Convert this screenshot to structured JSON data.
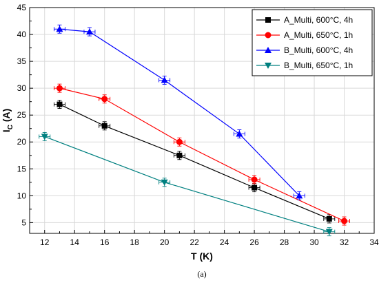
{
  "chart_data": {
    "type": "line",
    "xlabel": "T (K)",
    "ylabel_main": "I",
    "ylabel_sub": "C",
    "ylabel_unit": "(A)",
    "xlim": [
      11,
      34
    ],
    "ylim": [
      3,
      45
    ],
    "xticks": [
      12,
      14,
      16,
      18,
      20,
      22,
      24,
      26,
      28,
      30,
      32,
      34
    ],
    "yticks": [
      5,
      10,
      15,
      20,
      25,
      30,
      35,
      40,
      45
    ],
    "grid": true,
    "legend_position": "top-right",
    "series": [
      {
        "name": "A_Multi, 600°C, 4h",
        "color": "#000000",
        "marker": "square",
        "x": [
          13,
          16,
          21,
          26,
          31
        ],
        "y": [
          27,
          23,
          17.5,
          11.5,
          5.7
        ]
      },
      {
        "name": "A_Multi, 650°C, 1h",
        "color": "#ff0000",
        "marker": "circle",
        "x": [
          13,
          16,
          21,
          26,
          32
        ],
        "y": [
          30,
          28,
          20,
          13,
          5.3
        ]
      },
      {
        "name": "B_Multi, 600°C, 4h",
        "color": "#0000ff",
        "marker": "triangle-up",
        "x": [
          13,
          15,
          20,
          25,
          29
        ],
        "y": [
          41,
          40.5,
          31.5,
          21.5,
          10
        ]
      },
      {
        "name": "B_Multi, 650°C, 1h",
        "color": "#008080",
        "marker": "triangle-down",
        "x": [
          12,
          20,
          31
        ],
        "y": [
          21,
          12.5,
          3.3
        ]
      }
    ],
    "caption": "(a)"
  }
}
